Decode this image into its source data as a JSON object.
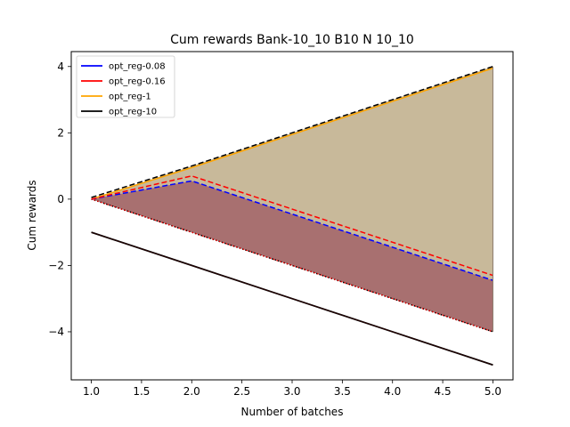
{
  "chart_data": {
    "type": "line",
    "title": "Cum rewards Bank-10_10 B10 N 10_10",
    "xlabel": "Number of batches",
    "ylabel": "Cum rewards",
    "xlim": [
      0.8,
      5.2
    ],
    "ylim": [
      -5.45,
      4.45
    ],
    "xticks": [
      "1.0",
      "1.5",
      "2.0",
      "2.5",
      "3.0",
      "3.5",
      "4.0",
      "4.5",
      "5.0"
    ],
    "xtick_values": [
      1.0,
      1.5,
      2.0,
      2.5,
      3.0,
      3.5,
      4.0,
      4.5,
      5.0
    ],
    "yticks": [
      "4",
      "2",
      "0",
      "−2",
      "−4"
    ],
    "ytick_values": [
      4,
      2,
      0,
      -2,
      -4
    ],
    "grid": false,
    "legend_position": "top-left",
    "x": [
      1,
      2,
      3,
      4,
      5
    ],
    "series": [
      {
        "name": "opt_reg-0.08",
        "color": "#0000ff",
        "mean": [
          0.0,
          0.55,
          -0.45,
          -1.45,
          -2.45
        ],
        "upper": [
          0.0,
          1.0,
          2.0,
          3.0,
          4.0
        ],
        "lower": [
          0.0,
          -1.0,
          -2.0,
          -3.0,
          -4.0
        ],
        "band_color": "#8b2f2f"
      },
      {
        "name": "opt_reg-0.16",
        "color": "#ff0000",
        "mean": [
          0.0,
          0.7,
          -0.3,
          -1.3,
          -2.3
        ],
        "upper": [
          0.0,
          1.0,
          2.0,
          3.0,
          4.0
        ],
        "lower": [
          0.0,
          -1.0,
          -2.0,
          -3.0,
          -4.0
        ]
      },
      {
        "name": "opt_reg-1",
        "color": "#ffa500",
        "mean": [
          0.0,
          0.95,
          1.95,
          2.95,
          3.95
        ],
        "upper": [
          0.0,
          1.0,
          2.0,
          3.0,
          4.0
        ],
        "lower": [
          0.0,
          1.0,
          2.0,
          3.0,
          4.0
        ]
      },
      {
        "name": "opt_reg-10",
        "color": "#000000",
        "mean": [
          -1.0,
          -2.0,
          -3.0,
          -4.0,
          -5.0
        ],
        "upper": [
          0.05,
          1.0,
          2.0,
          3.0,
          4.0
        ],
        "lower": [
          -1.0,
          -2.0,
          -3.0,
          -4.0,
          -5.0
        ]
      }
    ],
    "band_upper_color": "#c8b99a",
    "band_lower_color": "#a87070"
  }
}
